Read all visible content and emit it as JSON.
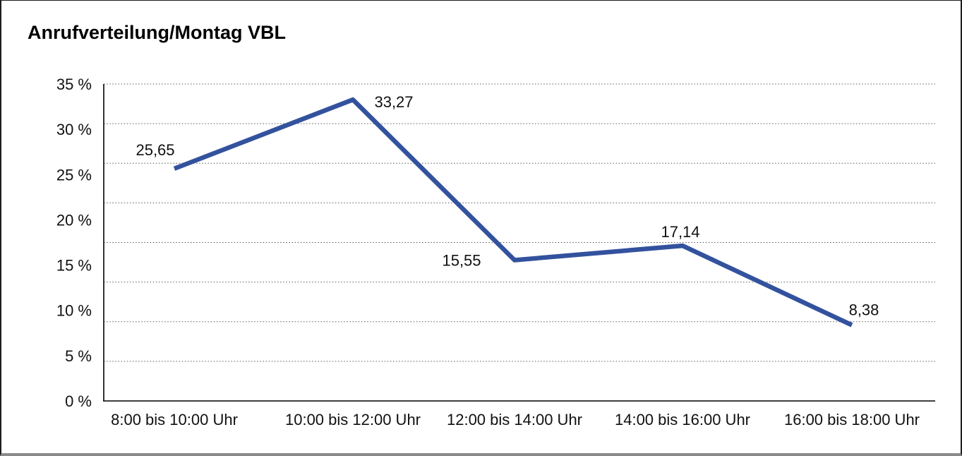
{
  "chart_data": {
    "type": "line",
    "title": "Anrufverteilung/Montag VBL",
    "categories": [
      "8:00 bis 10:00 Uhr",
      "10:00 bis 12:00 Uhr",
      "12:00 bis 14:00 Uhr",
      "14:00 bis 16:00 Uhr",
      "16:00 bis 18:00 Uhr"
    ],
    "values": [
      25.65,
      33.27,
      15.55,
      17.14,
      8.38
    ],
    "point_labels": [
      "25,65",
      "33,27",
      "15,55",
      "17,14",
      "8,38"
    ],
    "y_ticks": [
      "35 %",
      "30 %",
      "25 %",
      "20 %",
      "15 %",
      "10 %",
      "5 %",
      "0 %"
    ],
    "y_tick_values": [
      35,
      30,
      25,
      20,
      15,
      10,
      5,
      0
    ],
    "ylim": [
      0,
      35
    ],
    "xlabel": "",
    "ylabel": "",
    "legend": "none",
    "grid": "horizontal-dotted",
    "gridline_count": 9,
    "line_color": "#33529E",
    "axis_color": "#000000",
    "gridline_color": "#595959",
    "text_color": "#111111"
  }
}
